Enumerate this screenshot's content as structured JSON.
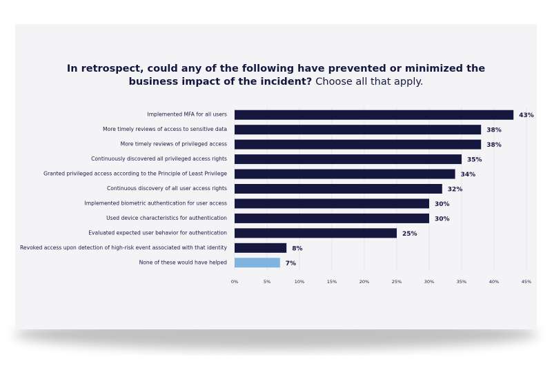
{
  "chart_data": {
    "type": "bar",
    "orientation": "horizontal",
    "title": [
      "In retrospect, could any of the following have prevented or minimized the",
      "business impact of the incident?"
    ],
    "subtitle": "Choose all that apply.",
    "categories": [
      "Implemented MFA for all users",
      "More timely reviews of access to sensitive data",
      "More timely reviews of privileged access",
      "Continuously discovered all privileged access rights",
      "Granted privileged access according to the Principle of Least Privilege",
      "Continuous discovery of all user access rights",
      "Implemented biometric authentication for user access",
      "Used device characteristics for authentication",
      "Evaluated expected user behavior for authentication",
      "Revoked access upon detection of high-risk event associated with that identity",
      "None of these would have helped"
    ],
    "values": [
      43,
      38,
      38,
      35,
      34,
      32,
      30,
      30,
      25,
      8,
      7
    ],
    "value_labels": [
      "43%",
      "38%",
      "38%",
      "35%",
      "34%",
      "32%",
      "30%",
      "30%",
      "25%",
      "8%",
      "7%"
    ],
    "colors": [
      "#15173f",
      "#15173f",
      "#15173f",
      "#15173f",
      "#15173f",
      "#15173f",
      "#15173f",
      "#15173f",
      "#15173f",
      "#15173f",
      "#7fb3e0"
    ],
    "xlim": [
      0,
      45
    ],
    "xticks": [
      {
        "value": 0,
        "label": "0%"
      },
      {
        "value": 5,
        "label": "5%"
      },
      {
        "value": 10,
        "label": "10%"
      },
      {
        "value": 15,
        "label": "15%"
      },
      {
        "value": 20,
        "label": "20%"
      },
      {
        "value": 25,
        "label": "25%"
      },
      {
        "value": 30,
        "label": "30%"
      },
      {
        "value": 35,
        "label": "35%"
      },
      {
        "value": 40,
        "label": "40%"
      },
      {
        "value": 45,
        "label": "45%"
      }
    ],
    "grid": true
  }
}
